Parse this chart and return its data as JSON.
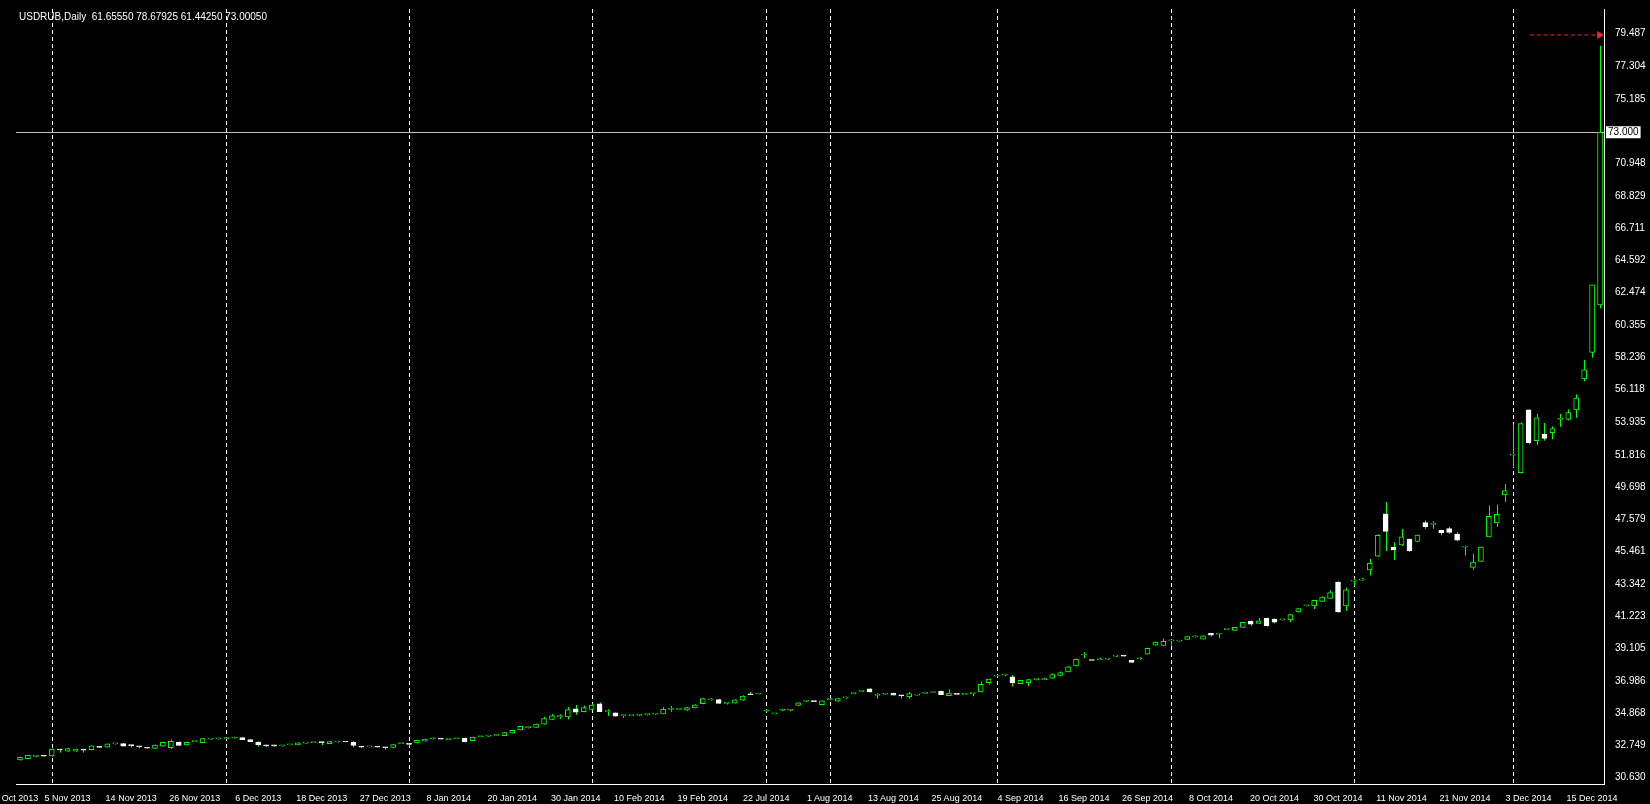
{
  "chart_data": {
    "type": "candlestick",
    "title": "USDRUB,Daily  61.65550 78.67925 61.44250 73.00050",
    "color": "#00ff00",
    "categories": [
      "Oct 2013",
      null,
      null,
      null,
      null,
      null,
      "5 Nov 2013",
      null,
      null,
      null,
      null,
      null,
      null,
      null,
      "14 Nov 2013",
      null,
      null,
      null,
      null,
      null,
      null,
      null,
      "26 Nov 2013",
      null,
      null,
      null,
      null,
      null,
      null,
      null,
      "6 Dec 2013",
      null,
      null,
      null,
      null,
      null,
      null,
      null,
      "18 Dec 2013",
      null,
      null,
      null,
      null,
      null,
      null,
      null,
      "27 Dec 2013",
      null,
      null,
      null,
      null,
      null,
      null,
      null,
      "8 Jan 2014",
      null,
      null,
      null,
      null,
      null,
      null,
      null,
      "20 Jan 2014",
      null,
      null,
      null,
      null,
      null,
      null,
      null,
      "30 Jan 2014",
      null,
      null,
      null,
      null,
      null,
      null,
      null,
      "10 Feb 2014",
      null,
      null,
      null,
      null,
      null,
      null,
      null,
      "19 Feb 2014",
      null,
      null,
      null,
      null,
      null,
      null,
      null,
      "22 Jul 2014",
      null,
      null,
      null,
      null,
      null,
      null,
      null,
      "1 Aug 2014",
      null,
      null,
      null,
      null,
      null,
      null,
      null,
      "13 Aug 2014",
      null,
      null,
      null,
      null,
      null,
      null,
      null,
      "25 Aug 2014",
      null,
      null,
      null,
      null,
      null,
      null,
      null,
      "4 Sep 2014",
      null,
      null,
      null,
      null,
      null,
      null,
      null,
      "16 Sep 2014",
      null,
      null,
      null,
      null,
      null,
      null,
      null,
      "26 Sep 2014",
      null,
      null,
      null,
      null,
      null,
      null,
      null,
      "8 Oct 2014",
      null,
      null,
      null,
      null,
      null,
      null,
      null,
      "20 Oct 2014",
      null,
      null,
      null,
      null,
      null,
      null,
      null,
      "30 Oct 2014",
      null,
      null,
      null,
      null,
      null,
      null,
      null,
      "11 Nov 2014",
      null,
      null,
      null,
      null,
      null,
      null,
      null,
      "21 Nov 2014",
      null,
      null,
      null,
      null,
      null,
      null,
      null,
      "3 Dec 2014",
      null,
      null,
      null,
      null,
      null,
      null,
      null,
      "15 Dec 2014",
      null
    ],
    "ohlc": [
      [
        31.79,
        32.0,
        31.75,
        31.96
      ],
      [
        31.88,
        32.12,
        31.85,
        32.09
      ],
      [
        32.02,
        32.1,
        31.96,
        32.03
      ],
      [
        32.05,
        32.08,
        32.02,
        32.04
      ],
      [
        32.05,
        32.52,
        32.0,
        32.48
      ],
      [
        32.45,
        32.52,
        32.27,
        32.44
      ],
      [
        32.37,
        32.58,
        32.33,
        32.54
      ],
      [
        32.37,
        32.52,
        32.33,
        32.5
      ],
      [
        32.45,
        32.47,
        32.27,
        32.43
      ],
      [
        32.46,
        32.75,
        32.42,
        32.71
      ],
      [
        32.62,
        32.64,
        32.58,
        32.61
      ],
      [
        32.63,
        32.86,
        32.61,
        32.84
      ],
      [
        32.84,
        32.88,
        32.8,
        32.85
      ],
      [
        32.86,
        32.88,
        32.67,
        32.69
      ],
      [
        32.74,
        32.76,
        32.61,
        32.73
      ],
      [
        32.66,
        32.69,
        32.56,
        32.65
      ],
      [
        32.57,
        32.59,
        32.53,
        32.56
      ],
      [
        32.54,
        32.8,
        32.5,
        32.76
      ],
      [
        32.69,
        32.99,
        32.65,
        32.95
      ],
      [
        32.59,
        33.12,
        32.5,
        33.01
      ],
      [
        32.95,
        33.0,
        32.7,
        32.74
      ],
      [
        32.78,
        33.0,
        32.74,
        32.95
      ],
      [
        32.99,
        33.02,
        32.97,
        33.0
      ],
      [
        32.93,
        33.24,
        32.9,
        33.19
      ],
      [
        33.16,
        33.22,
        33.12,
        33.17
      ],
      [
        33.17,
        33.23,
        33.12,
        33.18
      ],
      [
        33.19,
        33.22,
        33.15,
        33.2
      ],
      [
        33.23,
        33.31,
        33.19,
        33.24
      ],
      [
        33.25,
        33.28,
        33.1,
        33.12
      ],
      [
        33.12,
        33.14,
        32.97,
        32.99
      ],
      [
        32.97,
        33.0,
        32.67,
        32.8
      ],
      [
        32.72,
        32.75,
        32.63,
        32.71
      ],
      [
        32.72,
        32.74,
        32.65,
        32.71
      ],
      [
        32.71,
        32.77,
        32.66,
        32.72
      ],
      [
        32.78,
        32.81,
        32.75,
        32.79
      ],
      [
        32.78,
        32.93,
        32.76,
        32.91
      ],
      [
        32.89,
        32.92,
        32.86,
        32.9
      ],
      [
        32.93,
        32.96,
        32.91,
        32.94
      ],
      [
        32.94,
        32.96,
        32.76,
        32.93
      ],
      [
        32.86,
        33.01,
        32.84,
        32.99
      ],
      [
        32.97,
        33.02,
        32.93,
        32.98
      ],
      [
        32.98,
        32.99,
        32.96,
        32.97
      ],
      [
        32.95,
        33.03,
        32.61,
        32.74
      ],
      [
        32.64,
        32.69,
        32.57,
        32.63
      ],
      [
        32.65,
        32.7,
        32.61,
        32.66
      ],
      [
        32.64,
        32.65,
        32.61,
        32.63
      ],
      [
        32.6,
        32.62,
        32.46,
        32.59
      ],
      [
        32.61,
        32.82,
        32.59,
        32.8
      ],
      [
        32.86,
        32.89,
        32.84,
        32.87
      ],
      [
        32.82,
        32.84,
        32.69,
        32.81
      ],
      [
        32.91,
        33.1,
        32.88,
        33.08
      ],
      [
        33.03,
        33.18,
        33.0,
        33.16
      ],
      [
        33.18,
        33.24,
        33.14,
        33.19
      ],
      [
        33.18,
        33.19,
        33.15,
        33.16
      ],
      [
        33.12,
        33.18,
        33.08,
        33.13
      ],
      [
        33.18,
        33.21,
        33.16,
        33.19
      ],
      [
        33.23,
        33.25,
        32.95,
        32.97
      ],
      [
        33.05,
        33.31,
        33.03,
        33.29
      ],
      [
        33.31,
        33.34,
        33.29,
        33.32
      ],
      [
        33.35,
        33.4,
        33.31,
        33.36
      ],
      [
        33.4,
        33.42,
        33.38,
        33.41
      ],
      [
        33.38,
        33.61,
        33.36,
        33.59
      ],
      [
        33.55,
        33.76,
        33.53,
        33.74
      ],
      [
        33.76,
        34.02,
        33.74,
        34.0
      ],
      [
        33.91,
        33.97,
        33.86,
        33.92
      ],
      [
        33.93,
        34.17,
        33.91,
        34.15
      ],
      [
        34.13,
        34.62,
        34.1,
        34.51
      ],
      [
        34.45,
        34.8,
        34.42,
        34.68
      ],
      [
        34.63,
        34.79,
        34.49,
        34.65
      ],
      [
        34.62,
        35.26,
        34.45,
        35.09
      ],
      [
        35.15,
        35.39,
        34.75,
        34.92
      ],
      [
        34.96,
        35.35,
        34.92,
        35.22
      ],
      [
        35.11,
        35.5,
        35.07,
        35.39
      ],
      [
        35.48,
        35.56,
        34.93,
        34.96
      ],
      [
        34.96,
        35.11,
        34.68,
        34.97
      ],
      [
        34.88,
        34.9,
        34.64,
        34.66
      ],
      [
        34.7,
        34.76,
        34.55,
        34.71
      ],
      [
        34.7,
        34.72,
        34.69,
        34.71
      ],
      [
        34.72,
        34.79,
        34.67,
        34.73
      ],
      [
        34.76,
        34.82,
        34.7,
        34.77
      ],
      [
        34.79,
        34.82,
        34.77,
        34.8
      ],
      [
        34.81,
        35.26,
        34.79,
        35.11
      ],
      [
        35.11,
        35.33,
        34.94,
        35.12
      ],
      [
        35.11,
        35.13,
        35.09,
        35.12
      ],
      [
        35.05,
        35.28,
        35.0,
        35.22
      ],
      [
        35.2,
        35.45,
        35.18,
        35.41
      ],
      [
        35.48,
        35.86,
        35.45,
        35.82
      ],
      [
        35.73,
        35.84,
        35.67,
        35.74
      ],
      [
        35.76,
        35.8,
        35.48,
        35.5
      ],
      [
        35.5,
        35.56,
        35.43,
        35.51
      ],
      [
        35.52,
        35.76,
        35.5,
        35.73
      ],
      [
        35.71,
        36.03,
        35.69,
        35.99
      ],
      [
        36.08,
        36.25,
        36.06,
        36.07
      ],
      [
        36.12,
        36.15,
        36.1,
        36.13
      ],
      [
        35.0,
        35.11,
        34.92,
        35.01
      ],
      [
        34.81,
        34.84,
        34.79,
        34.82
      ],
      [
        35.05,
        35.15,
        34.99,
        35.06
      ],
      [
        35.05,
        35.13,
        34.99,
        35.06
      ],
      [
        35.37,
        35.56,
        35.35,
        35.54
      ],
      [
        35.64,
        35.71,
        35.6,
        35.65
      ],
      [
        35.63,
        35.64,
        35.6,
        35.62
      ],
      [
        35.41,
        35.69,
        35.39,
        35.67
      ],
      [
        35.75,
        35.82,
        35.7,
        35.76
      ],
      [
        35.65,
        35.85,
        35.62,
        35.82
      ],
      [
        35.86,
        35.92,
        35.8,
        35.87
      ],
      [
        36.14,
        36.2,
        36.1,
        36.15
      ],
      [
        36.29,
        36.35,
        36.25,
        36.3
      ],
      [
        36.46,
        36.5,
        36.22,
        36.25
      ],
      [
        36.03,
        36.18,
        35.82,
        36.04
      ],
      [
        36.1,
        36.13,
        36.08,
        36.11
      ],
      [
        36.18,
        36.2,
        36.03,
        36.05
      ],
      [
        36.01,
        36.03,
        35.82,
        36.0
      ],
      [
        35.95,
        36.25,
        35.82,
        36.14
      ],
      [
        36.05,
        36.1,
        36.01,
        36.06
      ],
      [
        36.16,
        36.18,
        36.14,
        36.17
      ],
      [
        36.22,
        36.25,
        36.2,
        36.23
      ],
      [
        36.31,
        36.33,
        36.05,
        36.07
      ],
      [
        36.01,
        36.4,
        35.99,
        36.18
      ],
      [
        36.1,
        36.12,
        36.07,
        36.09
      ],
      [
        36.09,
        36.12,
        36.07,
        36.1
      ],
      [
        36.14,
        36.17,
        35.97,
        36.15
      ],
      [
        36.25,
        36.93,
        36.22,
        36.76
      ],
      [
        36.87,
        37.12,
        36.74,
        37.1
      ],
      [
        37.29,
        37.33,
        37.25,
        37.3
      ],
      [
        37.36,
        37.44,
        37.29,
        37.37
      ],
      [
        37.25,
        37.36,
        36.61,
        36.87
      ],
      [
        36.8,
        37.05,
        36.76,
        37.02
      ],
      [
        36.87,
        37.1,
        36.63,
        37.06
      ],
      [
        37.06,
        37.12,
        37.01,
        37.07
      ],
      [
        37.06,
        37.19,
        37.04,
        37.07
      ],
      [
        37.15,
        37.46,
        37.12,
        37.4
      ],
      [
        37.34,
        37.59,
        37.31,
        37.53
      ],
      [
        37.57,
        37.95,
        37.55,
        37.9
      ],
      [
        37.96,
        38.43,
        37.93,
        38.39
      ],
      [
        38.68,
        38.86,
        38.47,
        38.69
      ],
      [
        38.33,
        38.35,
        38.3,
        38.32
      ],
      [
        38.37,
        38.5,
        38.35,
        38.38
      ],
      [
        38.41,
        38.48,
        38.36,
        38.42
      ],
      [
        38.6,
        38.66,
        38.55,
        38.61
      ],
      [
        38.61,
        38.63,
        38.58,
        38.6
      ],
      [
        38.33,
        38.35,
        38.18,
        38.2
      ],
      [
        38.43,
        38.52,
        38.37,
        38.44
      ],
      [
        38.73,
        39.16,
        38.71,
        39.12
      ],
      [
        39.33,
        39.55,
        39.31,
        39.53
      ],
      [
        39.31,
        39.76,
        39.29,
        39.57
      ],
      [
        39.61,
        39.72,
        39.29,
        39.62
      ],
      [
        39.59,
        39.62,
        39.57,
        39.6
      ],
      [
        39.7,
        39.91,
        39.68,
        39.89
      ],
      [
        39.87,
        39.95,
        39.82,
        39.88
      ],
      [
        39.72,
        39.95,
        39.7,
        39.93
      ],
      [
        40.1,
        40.12,
        39.91,
        39.98
      ],
      [
        40.04,
        40.1,
        39.78,
        40.05
      ],
      [
        40.34,
        40.37,
        40.32,
        40.35
      ],
      [
        40.3,
        40.51,
        40.28,
        40.49
      ],
      [
        40.49,
        40.86,
        40.46,
        40.83
      ],
      [
        40.9,
        40.95,
        40.58,
        40.7
      ],
      [
        40.75,
        41.11,
        40.72,
        40.92
      ],
      [
        41.09,
        41.13,
        40.55,
        40.6
      ],
      [
        41.03,
        41.07,
        40.76,
        40.83
      ],
      [
        40.98,
        41.01,
        40.96,
        40.99
      ],
      [
        40.98,
        41.35,
        40.85,
        41.33
      ],
      [
        41.5,
        41.75,
        41.47,
        41.73
      ],
      [
        41.9,
        41.93,
        41.87,
        41.91
      ],
      [
        41.9,
        42.29,
        41.69,
        42.27
      ],
      [
        42.2,
        42.52,
        42.18,
        42.48
      ],
      [
        42.4,
        42.93,
        42.38,
        42.78
      ],
      [
        43.47,
        43.51,
        41.45,
        41.5
      ],
      [
        41.9,
        43.1,
        41.58,
        42.95
      ],
      [
        43.53,
        43.71,
        43.19,
        43.55
      ],
      [
        43.6,
        43.75,
        43.58,
        43.61
      ],
      [
        44.26,
        44.99,
        43.9,
        44.69
      ],
      [
        45.16,
        46.6,
        45.12,
        46.53
      ],
      [
        47.95,
        48.72,
        45.51,
        46.79
      ],
      [
        45.76,
        46.08,
        44.91,
        45.57
      ],
      [
        45.91,
        46.94,
        45.83,
        46.43
      ],
      [
        46.28,
        46.33,
        45.45,
        45.51
      ],
      [
        46.13,
        46.6,
        46.09,
        46.56
      ],
      [
        47.37,
        47.52,
        46.96,
        47.11
      ],
      [
        47.26,
        47.46,
        46.96,
        47.27
      ],
      [
        46.86,
        46.88,
        46.53,
        46.71
      ],
      [
        46.98,
        47.09,
        46.62,
        46.73
      ],
      [
        46.62,
        46.75,
        46.15,
        46.21
      ],
      [
        45.76,
        45.87,
        45.21,
        45.77
      ],
      [
        44.43,
        45.33,
        44.28,
        44.78
      ],
      [
        44.82,
        45.8,
        44.78,
        45.76
      ],
      [
        46.43,
        48.49,
        46.4,
        47.78
      ],
      [
        47.35,
        48.55,
        47.1,
        47.91
      ],
      [
        49.19,
        49.9,
        48.72,
        49.47
      ],
      [
        51.8,
        53.82,
        50.97,
        51.81
      ],
      [
        50.65,
        53.95,
        50.59,
        53.87
      ],
      [
        54.77,
        54.8,
        52.51,
        52.62
      ],
      [
        52.75,
        54.51,
        52.45,
        54.25
      ],
      [
        53.16,
        53.91,
        52.75,
        52.9
      ],
      [
        53.27,
        53.69,
        52.84,
        53.54
      ],
      [
        54.15,
        54.51,
        53.65,
        54.2
      ],
      [
        54.15,
        54.81,
        54.08,
        54.6
      ],
      [
        54.77,
        55.79,
        54.25,
        55.54
      ],
      [
        56.8,
        58.05,
        56.65,
        57.4
      ],
      [
        58.54,
        62.98,
        58.2,
        62.98
      ],
      [
        61.6555,
        78.67925,
        61.4425,
        73.0005
      ]
    ],
    "colors": [
      "#00ff00",
      "#00ff00",
      "#00ff00",
      "#ffffff",
      "#00ff00",
      "#ffffff",
      "#00ff00",
      "#00ff00",
      "#ffffff",
      "#00ff00",
      "#ffffff",
      "#00ff00",
      "#00ff00",
      "#ffffff",
      "#ffffff",
      "#ffffff",
      "#ffffff",
      "#00ff00",
      "#00ff00",
      "#00ff00",
      "#ffffff",
      "#00ff00",
      "#00ff00",
      "#00ff00",
      "#00ff00",
      "#00ff00",
      "#00ff00",
      "#00ff00",
      "#ffffff",
      "#ffffff",
      "#ffffff",
      "#ffffff",
      "#ffffff",
      "#00ff00",
      "#00ff00",
      "#00ff00",
      "#00ff00",
      "#00ff00",
      "#ffffff",
      "#00ff00",
      "#00ff00",
      "#ffffff",
      "#ffffff",
      "#ffffff",
      "#00ff00",
      "#ffffff",
      "#ffffff",
      "#00ff00",
      "#00ff00",
      "#ffffff",
      "#00ff00",
      "#00ff00",
      "#00ff00",
      "#ffffff",
      "#00ff00",
      "#00ff00",
      "#ffffff",
      "#00ff00",
      "#00ff00",
      "#00ff00",
      "#00ff00",
      "#00ff00",
      "#00ff00",
      "#00ff00",
      "#00ff00",
      "#00ff00",
      "#00ff00",
      "#00ff00",
      "#00ff00",
      "#00ff00",
      "#ffffff",
      "#00ff00",
      "#00ff00",
      "#ffffff",
      "#00ff00",
      "#ffffff",
      "#00ff00",
      "#00ff00",
      "#00ff00",
      "#00ff00",
      "#00ff00",
      "#00ff00",
      "#00ff00",
      "#00ff00",
      "#00ff00",
      "#00ff00",
      "#00ff00",
      "#00ff00",
      "#ffffff",
      "#00ff00",
      "#00ff00",
      "#00ff00",
      "#ffffff",
      "#00ff00",
      "#00ff00",
      "#00ff00",
      "#00ff00",
      "#00ff00",
      "#00ff00",
      "#00ff00",
      "#ffffff",
      "#00ff00",
      "#00ff00",
      "#00ff00",
      "#00ff00",
      "#00ff00",
      "#00ff00",
      "#ffffff",
      "#00ff00",
      "#00ff00",
      "#ffffff",
      "#ffffff",
      "#00ff00",
      "#00ff00",
      "#00ff00",
      "#00ff00",
      "#ffffff",
      "#00ff00",
      "#ffffff",
      "#00ff00",
      "#00ff00",
      "#00ff00",
      "#00ff00",
      "#00ff00",
      "#00ff00",
      "#ffffff",
      "#00ff00",
      "#00ff00",
      "#00ff00",
      "#00ff00",
      "#00ff00",
      "#00ff00",
      "#00ff00",
      "#00ff00",
      "#00ff00",
      "#ffffff",
      "#00ff00",
      "#00ff00",
      "#00ff00",
      "#ffffff",
      "#ffffff",
      "#00ff00",
      "#00ff00",
      "#00ff00",
      "#00ff00",
      "#00ff00",
      "#00ff00",
      "#00ff00",
      "#00ff00",
      "#00ff00",
      "#ffffff",
      "#00ff00",
      "#00ff00",
      "#00ff00",
      "#00ff00",
      "#ffffff",
      "#00ff00",
      "#ffffff",
      "#ffffff",
      "#00ff00",
      "#00ff00",
      "#00ff00",
      "#00ff00",
      "#00ff00",
      "#00ff00",
      "#00ff00",
      "#ffffff",
      "#00ff00",
      "#00ff00",
      "#00ff00",
      "#00ff00",
      "#00ff00",
      "#ffffff",
      "#ffffff",
      "#00ff00",
      "#ffffff",
      "#00ff00",
      "#ffffff",
      "#00ff00",
      "#ffffff",
      "#ffffff",
      "#ffffff",
      "#00ff00",
      "#00ff00",
      "#00ff00",
      "#00ff00",
      "#00ff00",
      "#00ff00",
      "#00ff00",
      "#00ff00",
      "#ffffff",
      "#00ff00",
      "#ffffff",
      "#00ff00",
      "#00ff00",
      "#00ff00",
      "#00ff00",
      "#00ff00",
      "#00ff00",
      "#00ff00"
    ],
    "ylim": [
      30.21,
      81.09
    ],
    "yticks": [
      {
        "value": 30.63,
        "label": "30.630"
      },
      32.749,
      34.868,
      36.986,
      39.105,
      41.223,
      43.342,
      45.461,
      47.579,
      49.698,
      51.816,
      53.935,
      56.118,
      58.236,
      60.355,
      62.474,
      64.592,
      66.711,
      68.829,
      70.948,
      75.185,
      77.304,
      79.487
    ],
    "ref_lines": [
      {
        "axis": "y",
        "value": 73,
        "label": "73.000",
        "color": "#c0c0c0",
        "line_style": "solid"
      }
    ],
    "legend": false
  }
}
